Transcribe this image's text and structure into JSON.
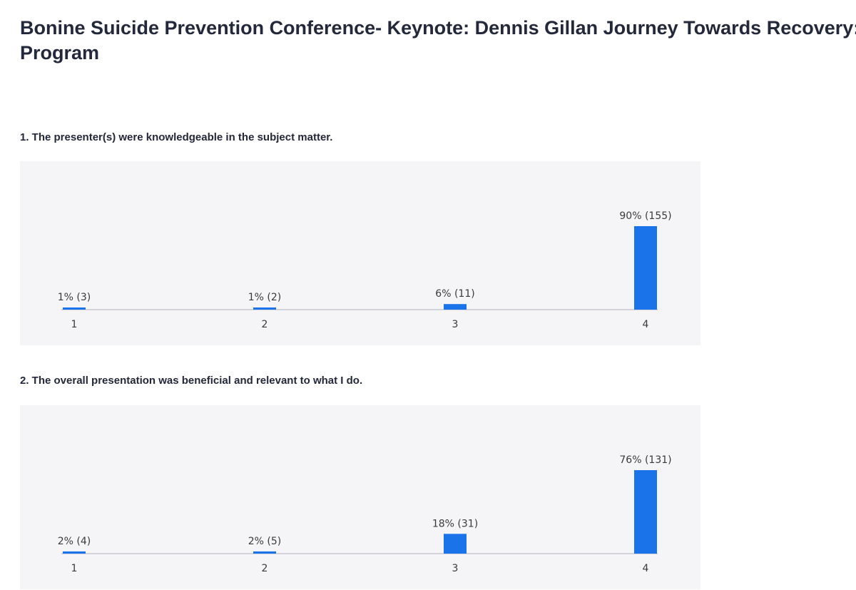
{
  "page": {
    "title": "Bonine Suicide Prevention Conference- Keynote: Dennis Gillan Journey Towards Recovery: Program"
  },
  "colors": {
    "bar": "#1a73e8",
    "axis": "#d3d3dc",
    "background": "#f5f5f7"
  },
  "chart_data": [
    {
      "type": "bar",
      "title": "1. The presenter(s) were knowledgeable in the subject matter.",
      "categories": [
        "1",
        "2",
        "3",
        "4"
      ],
      "values": [
        1,
        1,
        6,
        90
      ],
      "counts": [
        3,
        2,
        11,
        155
      ],
      "labels": [
        "1% (3)",
        "1% (2)",
        "6% (11)",
        "90% (155)"
      ],
      "xlabel": "",
      "ylabel": "",
      "grid": false
    },
    {
      "type": "bar",
      "title": "2. The overall presentation was beneficial and relevant to what I do.",
      "categories": [
        "1",
        "2",
        "3",
        "4"
      ],
      "values": [
        2,
        2,
        18,
        76
      ],
      "counts": [
        4,
        5,
        31,
        131
      ],
      "labels": [
        "2% (4)",
        "2% (5)",
        "18% (31)",
        "76% (131)"
      ],
      "xlabel": "",
      "ylabel": "",
      "grid": false
    }
  ]
}
